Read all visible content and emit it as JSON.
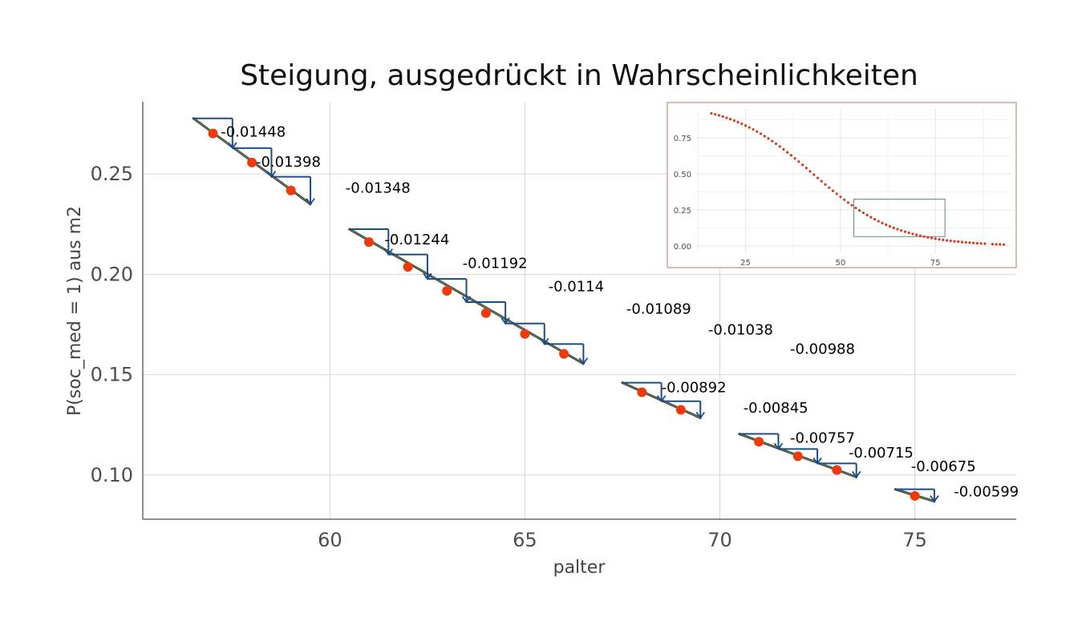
{
  "chart_data": [
    {
      "type": "line",
      "title": "Steigung, ausgedrückt in Wahrscheinlichkeiten",
      "xlabel": "palter",
      "ylabel": "P(soc_med = 1) aus m2",
      "xlim": [
        55.2,
        77.6
      ],
      "ylim": [
        0.078,
        0.286
      ],
      "xticks": [
        60,
        65,
        70,
        75
      ],
      "yticks": [
        0.1,
        0.15,
        0.2,
        0.25
      ],
      "ytick_labels": [
        "0.10",
        "0.15",
        "0.20",
        "0.25"
      ],
      "grid": true,
      "colors": {
        "point": "#F0390A",
        "line": "#1A4E84",
        "curve": "#444444"
      },
      "points": [
        {
          "x": 57,
          "y": 0.2702
        },
        {
          "x": 58,
          "y": 0.2557
        },
        {
          "x": 59,
          "y": 0.2418
        },
        {
          "x": 61,
          "y": 0.2161
        },
        {
          "x": 62,
          "y": 0.2037
        },
        {
          "x": 63,
          "y": 0.1918
        },
        {
          "x": 64,
          "y": 0.1807
        },
        {
          "x": 65,
          "y": 0.1703
        },
        {
          "x": 66,
          "y": 0.1604
        },
        {
          "x": 68,
          "y": 0.1413
        },
        {
          "x": 69,
          "y": 0.1325
        },
        {
          "x": 71,
          "y": 0.1166
        },
        {
          "x": 72,
          "y": 0.1094
        },
        {
          "x": 73,
          "y": 0.1025
        },
        {
          "x": 75,
          "y": 0.0896
        }
      ],
      "segments": [
        {
          "x_start": 56.5,
          "y_start": 0.2777,
          "x_end": 59.5,
          "y_end": 0.235
        },
        {
          "x_start": 60.5,
          "y_start": 0.2225,
          "x_end": 66.5,
          "y_end": 0.1555
        },
        {
          "x_start": 67.5,
          "y_start": 0.146,
          "x_end": 69.5,
          "y_end": 0.1285
        },
        {
          "x_start": 70.5,
          "y_start": 0.1205,
          "x_end": 73.5,
          "y_end": 0.099
        },
        {
          "x_start": 74.5,
          "y_start": 0.0929,
          "x_end": 75.5,
          "y_end": 0.0869
        }
      ],
      "steps": [
        {
          "x0": 56.5,
          "y0": 0.2777,
          "x1": 57.5,
          "y1": 0.2629
        },
        {
          "x0": 57.5,
          "y0": 0.2629,
          "x1": 58.5,
          "y1": 0.2486
        },
        {
          "x0": 58.5,
          "y0": 0.2486,
          "x1": 59.5,
          "y1": 0.235
        },
        {
          "x0": 60.5,
          "y0": 0.2225,
          "x1": 61.5,
          "y1": 0.2099
        },
        {
          "x0": 61.5,
          "y0": 0.2099,
          "x1": 62.5,
          "y1": 0.1977
        },
        {
          "x0": 62.5,
          "y0": 0.1977,
          "x1": 63.5,
          "y1": 0.1862
        },
        {
          "x0": 63.5,
          "y0": 0.1862,
          "x1": 64.5,
          "y1": 0.1755
        },
        {
          "x0": 64.5,
          "y0": 0.1755,
          "x1": 65.5,
          "y1": 0.1653
        },
        {
          "x0": 65.5,
          "y0": 0.1653,
          "x1": 66.5,
          "y1": 0.1555
        },
        {
          "x0": 67.5,
          "y0": 0.146,
          "x1": 68.5,
          "y1": 0.1368
        },
        {
          "x0": 68.5,
          "y0": 0.1368,
          "x1": 69.5,
          "y1": 0.1285
        },
        {
          "x0": 70.5,
          "y0": 0.1205,
          "x1": 71.5,
          "y1": 0.113
        },
        {
          "x0": 71.5,
          "y0": 0.113,
          "x1": 72.5,
          "y1": 0.1058
        },
        {
          "x0": 72.5,
          "y0": 0.1058,
          "x1": 73.5,
          "y1": 0.099
        },
        {
          "x0": 74.5,
          "y0": 0.0929,
          "x1": 75.5,
          "y1": 0.0869
        }
      ],
      "annotations": [
        {
          "text": "-0.01448",
          "x": 57.2,
          "y": 0.2687
        },
        {
          "text": "-0.01398",
          "x": 58.1,
          "y": 0.2536
        },
        {
          "text": "-0.01348",
          "x": 60.4,
          "y": 0.2406
        },
        {
          "text": "-0.01244",
          "x": 61.4,
          "y": 0.215
        },
        {
          "text": "-0.01192",
          "x": 63.4,
          "y": 0.2032
        },
        {
          "text": "-0.0114",
          "x": 65.6,
          "y": 0.1915
        },
        {
          "text": "-0.01089",
          "x": 67.6,
          "y": 0.1804
        },
        {
          "text": "-0.01038",
          "x": 69.7,
          "y": 0.17
        },
        {
          "text": "-0.00988",
          "x": 71.8,
          "y": 0.1604
        },
        {
          "text": "-0.00892",
          "x": 68.5,
          "y": 0.1412
        },
        {
          "text": "-0.00845",
          "x": 70.6,
          "y": 0.1311
        },
        {
          "text": "-0.00757",
          "x": 71.8,
          "y": 0.1161
        },
        {
          "text": "-0.00715",
          "x": 73.3,
          "y": 0.1087
        },
        {
          "text": "-0.00675",
          "x": 74.9,
          "y": 0.1019
        },
        {
          "text": "-0.00599",
          "x": 76.0,
          "y": 0.0893
        }
      ]
    },
    {
      "type": "scatter",
      "xlim": [
        12,
        95
      ],
      "ylim": [
        -0.05,
        0.95
      ],
      "xticks": [
        25,
        50,
        75
      ],
      "yticks": [
        0.0,
        0.25,
        0.5,
        0.75
      ],
      "ytick_labels": [
        "0.00",
        "0.25",
        "0.50",
        "0.75"
      ],
      "grid": true,
      "logistic_model": {
        "intercept": 3.9,
        "slope": -0.0912
      },
      "x_range": [
        16,
        93
      ],
      "x_gap": [
        88,
        90
      ],
      "highlight_box": {
        "x": [
          53.5,
          77.5
        ],
        "y": [
          0.065,
          0.325
        ]
      },
      "colors": {
        "point": "#D9381E",
        "box": "#5F8A8B",
        "frame": "#C9A99A"
      }
    }
  ]
}
